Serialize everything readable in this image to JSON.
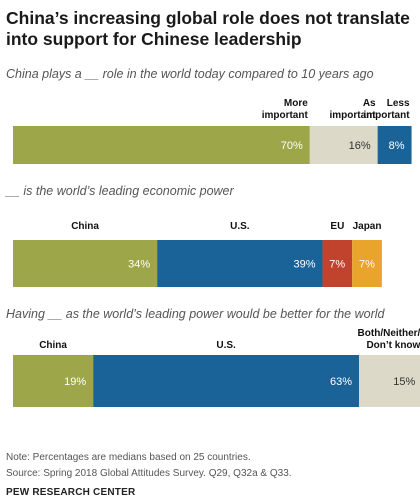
{
  "title": "China’s increasing global role does not translate into support for Chinese leadership",
  "note": "Note: Percentages are medians based on 25 countries.",
  "source": "Source: Spring 2018 Global Attitudes Survey. Q29, Q32a & Q33.",
  "org": "PEW RESEARCH CENTER",
  "colors": {
    "green": "#9ea64a",
    "beige": "#dcd9c8",
    "blue": "#1a6399",
    "red": "#c1432d",
    "orange": "#e9a42c"
  },
  "chart_data": [
    {
      "type": "bar",
      "title": "China plays a __ role in the world today compared to 10 years ago",
      "categories": [
        "More important",
        "As important",
        "Less important"
      ],
      "values": [
        70,
        16,
        8
      ],
      "colors": [
        "#9ea64a",
        "#dcd9c8",
        "#1a6399"
      ],
      "labels": [
        "70%",
        "16%",
        "8%"
      ]
    },
    {
      "type": "bar",
      "title": "__ is the world’s leading economic power",
      "categories": [
        "China",
        "U.S.",
        "EU",
        "Japan"
      ],
      "values": [
        34,
        39,
        7,
        7
      ],
      "colors": [
        "#9ea64a",
        "#1a6399",
        "#c1432d",
        "#e9a42c"
      ],
      "labels": [
        "34%",
        "39%",
        "7%",
        "7%"
      ]
    },
    {
      "type": "bar",
      "title": "Having __ as the world’s leading power would be better for the world",
      "categories": [
        "China",
        "U.S.",
        "Both/Neither/ Don’t know"
      ],
      "values": [
        19,
        63,
        15
      ],
      "colors": [
        "#9ea64a",
        "#1a6399",
        "#dcd9c8"
      ],
      "labels": [
        "19%",
        "63%",
        "15%"
      ]
    }
  ]
}
